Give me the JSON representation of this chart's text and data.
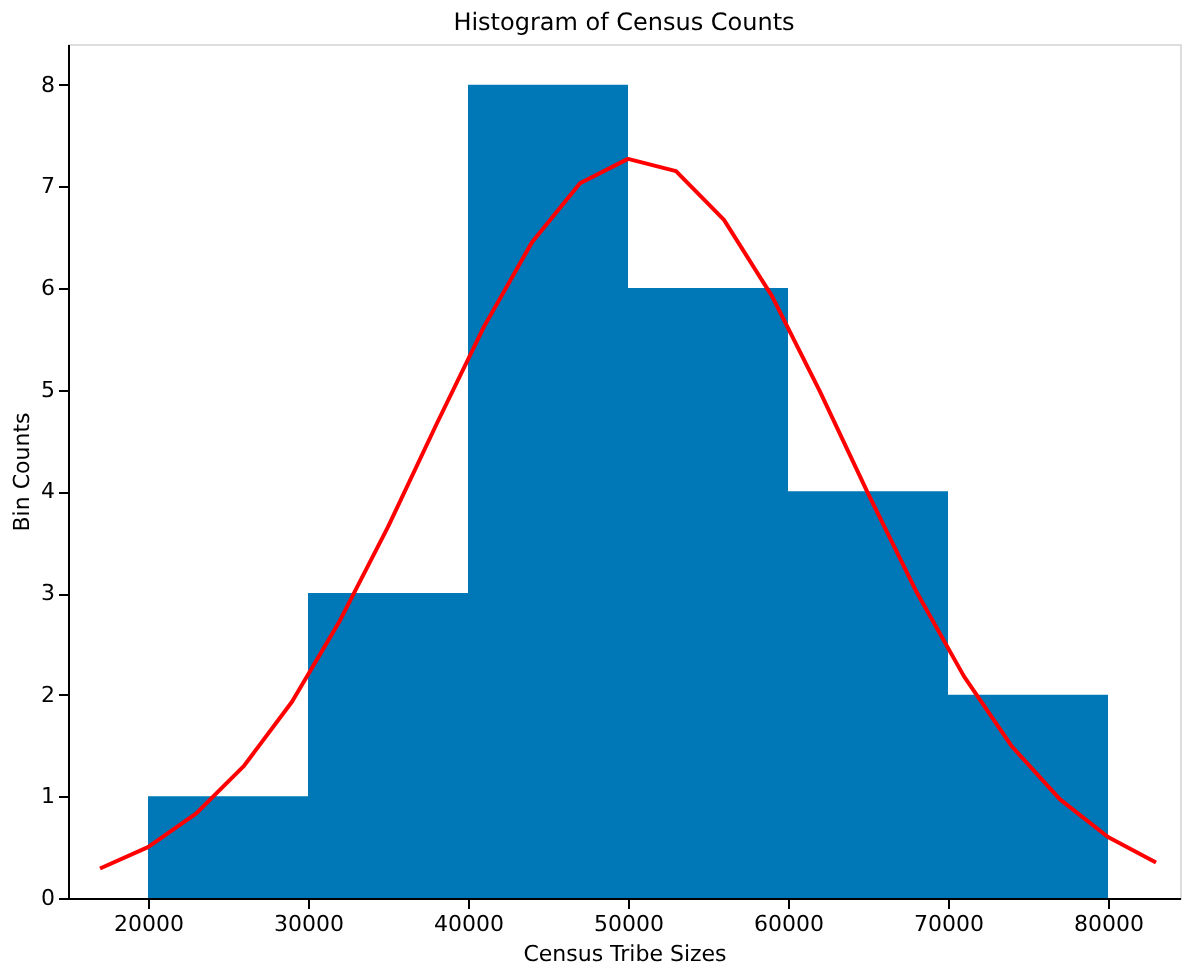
{
  "chart_data": {
    "type": "histogram",
    "title": "Histogram of Census Counts",
    "xlabel": "Census Tribe Sizes",
    "ylabel": "Bin Counts",
    "bins": [
      20000,
      30000,
      40000,
      50000,
      60000,
      70000,
      80000
    ],
    "values": [
      1,
      3,
      8,
      6,
      4,
      2
    ],
    "color": "#0077b6",
    "series": [
      {
        "type": "line",
        "color": "#ff0000",
        "x": [
          17000,
          20000,
          23000,
          26000,
          29000,
          32000,
          35000,
          38000,
          41000,
          44000,
          47000,
          50000,
          53000,
          56000,
          59000,
          62000,
          65000,
          68000,
          71000,
          74000,
          77000,
          80000,
          83000
        ],
        "values": [
          0.29,
          0.5,
          0.83,
          1.3,
          1.93,
          2.73,
          3.65,
          4.65,
          5.62,
          6.45,
          7.03,
          7.27,
          7.15,
          6.67,
          5.92,
          4.98,
          3.98,
          3.02,
          2.18,
          1.49,
          0.97,
          0.6,
          0.35
        ]
      }
    ],
    "xlim": [
      15000,
      84500
    ],
    "ylim": [
      0,
      8.4
    ],
    "xticks": [
      20000,
      30000,
      40000,
      50000,
      60000,
      70000,
      80000
    ],
    "yticks": [
      0,
      1,
      2,
      3,
      4,
      5,
      6,
      7,
      8
    ],
    "grid": false
  }
}
